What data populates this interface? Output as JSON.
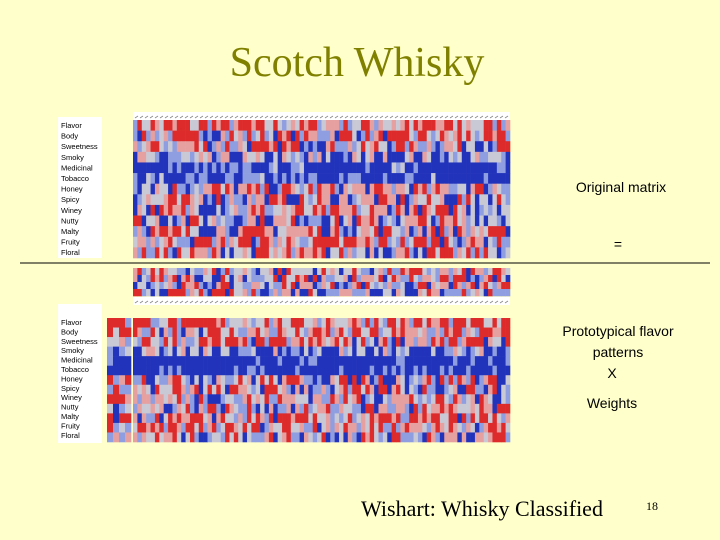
{
  "title": "Scotch Whisky",
  "matrix_rows": [
    "Flavor",
    "Body",
    "Sweetness",
    "Smoky",
    "Medicinal",
    "Tobacco",
    "Honey",
    "Spicy",
    "Winey",
    "Nutty",
    "Malty",
    "Fruity",
    "Floral"
  ],
  "prototype_rows": [
    "Flavor",
    "Body",
    "Sweetness",
    "Smoky",
    "Medicinal",
    "Tobacco",
    "Honey",
    "Spicy",
    "Winey",
    "Nutty",
    "Malty",
    "Fruity",
    "Floral"
  ],
  "right_labels": {
    "original": "Original matrix",
    "equals": "=",
    "prototypical": [
      "Prototypical flavor",
      "patterns",
      "X"
    ],
    "weights": "Weights"
  },
  "footer": {
    "citation": "Wishart: Whisky Classified",
    "page": "18"
  }
}
